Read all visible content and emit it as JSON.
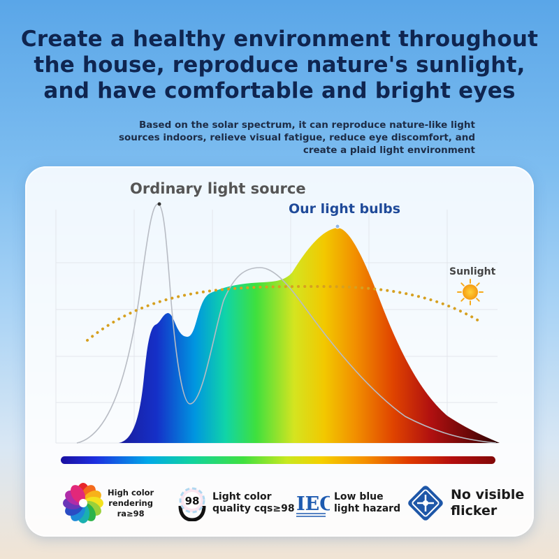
{
  "headline": {
    "line1": "Create a healthy environment throughout",
    "line2": "the house, reproduce nature's sunlight,",
    "line3": "and have comfortable and bright eyes"
  },
  "subtext": {
    "line1": "Based on the solar spectrum, it can reproduce nature-like light",
    "line2": "sources indoors, relieve visual fatigue, reduce eye discomfort, and",
    "line3": "create a plaid light environment"
  },
  "chart": {
    "ordinary_label": "Ordinary light source",
    "ours_label": "Our light bulbs",
    "sun_label": "Sunlight"
  },
  "features": [
    {
      "icon": "color-wheel-icon",
      "lines": [
        "High color",
        "rendering",
        "ra≥98"
      ]
    },
    {
      "icon": "cqs-badge-icon",
      "badge": "98",
      "lines": [
        "Light color",
        "quality cqs≥98"
      ]
    },
    {
      "icon": "iec-logo-icon",
      "logo": "IEC",
      "lines": [
        "Low blue",
        "light hazard"
      ]
    },
    {
      "icon": "no-flicker-icon",
      "lines": [
        "No visible",
        "flicker"
      ]
    }
  ]
}
